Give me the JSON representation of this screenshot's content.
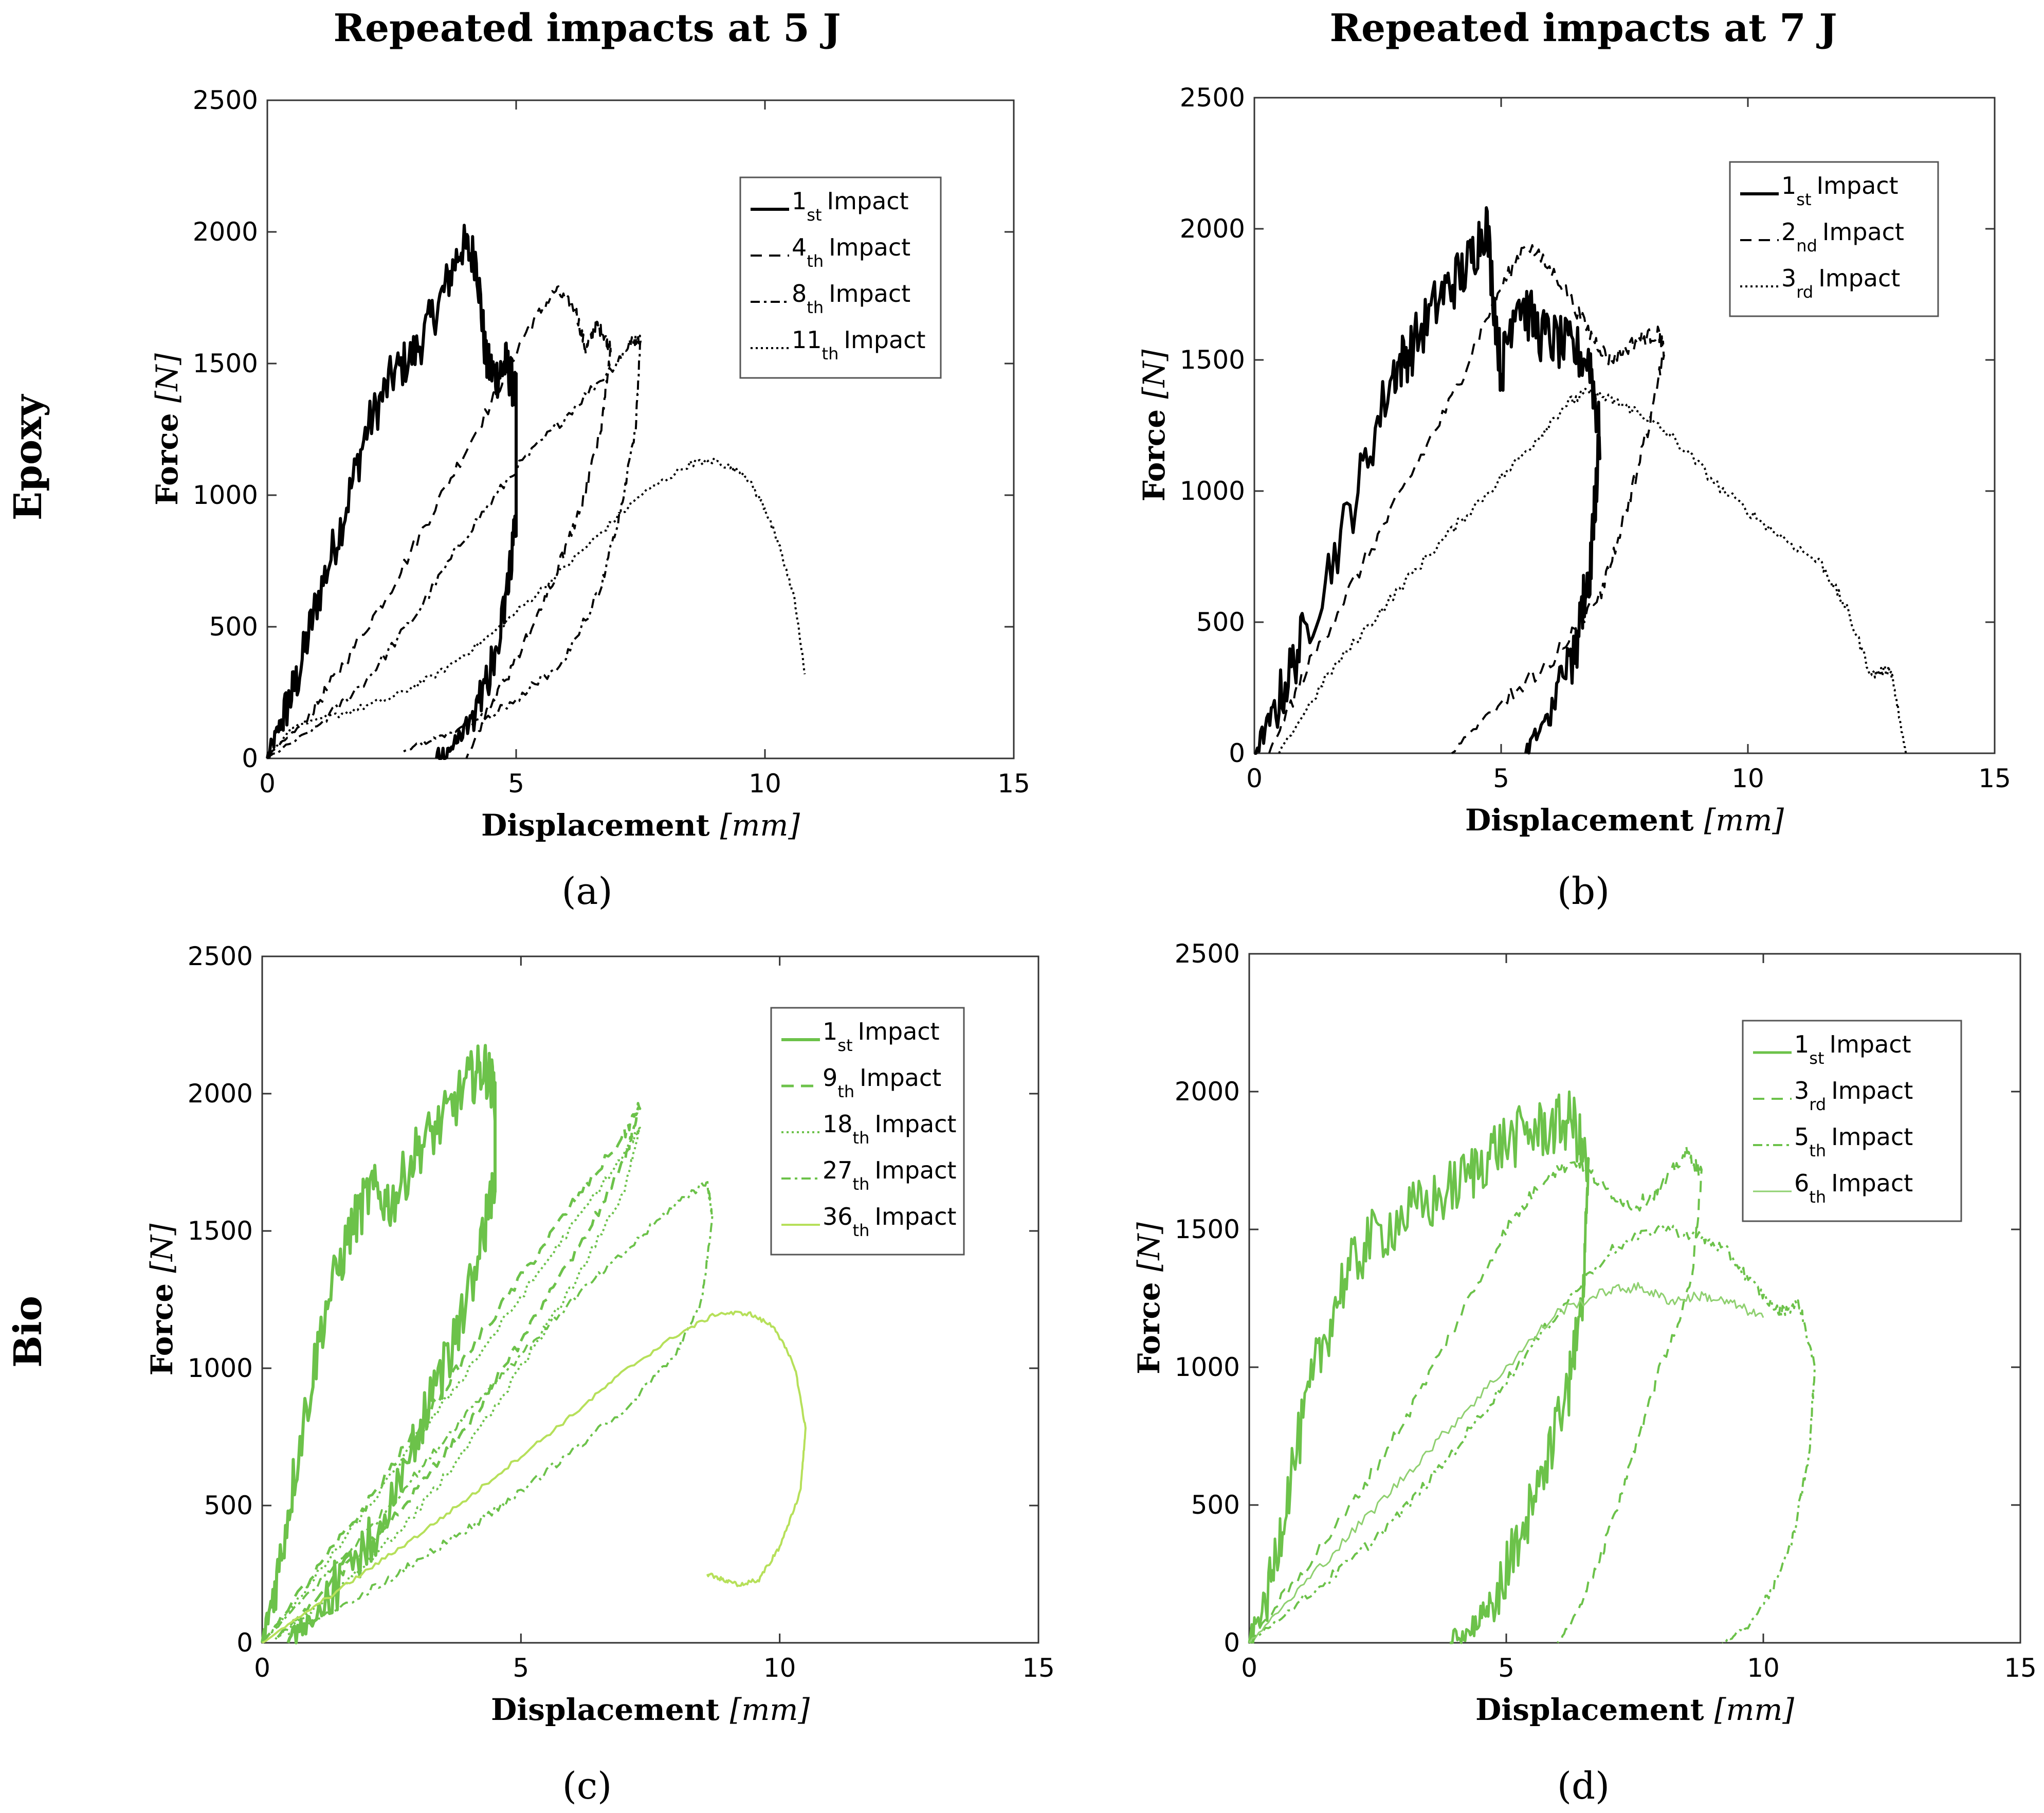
{
  "columns": [
    "Repeated impacts at 5 J",
    "Repeated impacts at 7 J"
  ],
  "rows": [
    "Epoxy",
    "Bio"
  ],
  "colors": {
    "epoxy": "#000000",
    "bio": "#6cc24a",
    "bio_light": "#b6e05a",
    "bio_faded": "#8fd070"
  },
  "chart_data": [
    {
      "type": "line",
      "panel": "(a)",
      "material": "Epoxy",
      "energy": "5 J",
      "xlabel": "Displacement",
      "xunit": "mm",
      "ylabel": "Force",
      "yunit": "N",
      "xlim": [
        0,
        15
      ],
      "ylim": [
        0,
        2500
      ],
      "xticks": [
        0,
        5,
        10,
        15
      ],
      "yticks": [
        0,
        500,
        1000,
        1500,
        2000,
        2500
      ],
      "legend": [
        {
          "num": "1",
          "sub": "st",
          "text": "Impact"
        },
        {
          "num": "4",
          "sub": "th",
          "text": "Impact"
        },
        {
          "num": "8",
          "sub": "th",
          "text": "Impact"
        },
        {
          "num": "11",
          "sub": "th",
          "text": "Impact"
        }
      ],
      "series": [
        {
          "name": "1st Impact",
          "color": "epoxy",
          "dash": "",
          "width": 6,
          "noise": 90,
          "x": [
            0,
            0.3,
            0.6,
            1.0,
            1.5,
            2.0,
            2.5,
            3.0,
            3.5,
            3.9,
            4.2,
            4.4,
            4.6,
            4.8,
            5.0,
            5.0,
            4.8,
            4.5,
            4.1,
            3.7,
            3.4
          ],
          "y": [
            0,
            150,
            300,
            600,
            900,
            1250,
            1450,
            1550,
            1750,
            1950,
            1900,
            1500,
            1450,
            1500,
            1380,
            900,
            600,
            350,
            150,
            30,
            0
          ]
        },
        {
          "name": "4th Impact",
          "color": "epoxy",
          "dash": "22,14",
          "width": 4,
          "noise": 25,
          "x": [
            0,
            0.8,
            1.5,
            2.5,
            3.5,
            4.5,
            5.2,
            5.8,
            6.2,
            6.4,
            6.6,
            6.8,
            6.9,
            6.7,
            6.3,
            5.8,
            5.2,
            4.5,
            4.0
          ],
          "y": [
            0,
            150,
            350,
            650,
            1000,
            1350,
            1620,
            1780,
            1700,
            1550,
            1650,
            1600,
            1550,
            1250,
            950,
            700,
            450,
            200,
            0
          ]
        },
        {
          "name": "8th Impact",
          "color": "epoxy",
          "dash": "18,8,5,8",
          "width": 4,
          "noise": 20,
          "x": [
            0,
            1.0,
            2.0,
            3.0,
            4.0,
            5.0,
            6.0,
            7.0,
            7.3,
            7.5,
            7.4,
            7.1,
            6.7,
            6.0,
            5.0,
            4.0,
            3.3,
            2.7
          ],
          "y": [
            0,
            120,
            300,
            550,
            850,
            1100,
            1300,
            1500,
            1580,
            1600,
            1250,
            950,
            650,
            380,
            220,
            120,
            70,
            30
          ]
        },
        {
          "name": "11th Impact",
          "color": "epoxy",
          "dash": "4,6",
          "width": 4,
          "noise": 12,
          "x": [
            0,
            0.5,
            1.5,
            2.5,
            3.5,
            4.5,
            5.5,
            6.5,
            7.5,
            8.5,
            9.0,
            9.6,
            10.0,
            10.3,
            10.6,
            10.8
          ],
          "y": [
            0,
            120,
            170,
            230,
            330,
            470,
            640,
            820,
            1000,
            1120,
            1130,
            1080,
            950,
            800,
            600,
            320
          ]
        }
      ]
    },
    {
      "type": "line",
      "panel": "(b)",
      "material": "Epoxy",
      "energy": "7 J",
      "xlabel": "Displacement",
      "xunit": "mm",
      "ylabel": "Force",
      "yunit": "N",
      "xlim": [
        0,
        15
      ],
      "ylim": [
        0,
        2500
      ],
      "xticks": [
        0,
        5,
        10,
        15
      ],
      "yticks": [
        0,
        500,
        1000,
        1500,
        2000,
        2500
      ],
      "legend": [
        {
          "num": "1",
          "sub": "st",
          "text": "Impact"
        },
        {
          "num": "2",
          "sub": "nd",
          "text": "Impact"
        },
        {
          "num": "3",
          "sub": "rd",
          "text": "Impact"
        }
      ],
      "series": [
        {
          "name": "1st Impact",
          "color": "epoxy",
          "dash": "",
          "width": 6,
          "noise": 110,
          "x": [
            0,
            0.5,
            1.0,
            2.0,
            2.8,
            3.2,
            3.8,
            4.3,
            4.7,
            5.0,
            5.3,
            5.8,
            6.3,
            6.8,
            7.0,
            6.8,
            6.5,
            6.0,
            5.5
          ],
          "y": [
            0,
            200,
            450,
            950,
            1450,
            1550,
            1750,
            1850,
            2030,
            1450,
            1750,
            1600,
            1550,
            1500,
            1200,
            700,
            400,
            150,
            0
          ]
        },
        {
          "name": "2nd Impact",
          "color": "epoxy",
          "dash": "22,14",
          "width": 4,
          "noise": 30,
          "x": [
            0.3,
            1.0,
            2.0,
            3.0,
            4.0,
            4.8,
            5.5,
            6.2,
            6.8,
            7.2,
            7.8,
            8.2,
            8.3,
            8.0,
            7.5,
            7.0,
            6.0,
            5.0,
            4.0
          ],
          "y": [
            0,
            300,
            650,
            1000,
            1350,
            1700,
            1950,
            1800,
            1600,
            1500,
            1580,
            1600,
            1530,
            1250,
            900,
            600,
            350,
            200,
            0
          ]
        },
        {
          "name": "3rd Impact",
          "color": "epoxy",
          "dash": "4,6",
          "width": 4,
          "noise": 20,
          "x": [
            0.5,
            1.5,
            2.5,
            3.5,
            4.5,
            5.5,
            6.3,
            6.8,
            7.3,
            7.8,
            8.5,
            9.5,
            10.5,
            11.5,
            12.0,
            12.5,
            12.9,
            13.1,
            13.2
          ],
          "y": [
            0,
            300,
            530,
            750,
            950,
            1150,
            1330,
            1380,
            1340,
            1300,
            1200,
            1000,
            850,
            720,
            550,
            300,
            320,
            100,
            0
          ]
        }
      ]
    },
    {
      "type": "line",
      "panel": "(c)",
      "material": "Bio",
      "energy": "5 J",
      "xlabel": "Displacement",
      "xunit": "mm",
      "ylabel": "Force",
      "yunit": "N",
      "xlim": [
        0,
        15
      ],
      "ylim": [
        0,
        2500
      ],
      "xticks": [
        0,
        5,
        10,
        15
      ],
      "yticks": [
        0,
        500,
        1000,
        1500,
        2000,
        2500
      ],
      "legend": [
        {
          "num": "1",
          "sub": "st",
          "text": "Impact"
        },
        {
          "num": "9",
          "sub": "th",
          "text": "Impact"
        },
        {
          "num": "18",
          "sub": "th",
          "text": "Impact"
        },
        {
          "num": "27",
          "sub": "th",
          "text": "Impact"
        },
        {
          "num": "36",
          "sub": "th",
          "text": "Impact"
        }
      ],
      "series": [
        {
          "name": "1st Impact",
          "color": "bio",
          "dash": "",
          "width": 6,
          "noise": 100,
          "x": [
            0,
            0.3,
            0.7,
            1.2,
            1.7,
            2.1,
            2.5,
            3.0,
            3.5,
            4.0,
            4.3,
            4.5,
            4.5,
            4.2,
            3.7,
            3.1,
            2.5,
            1.8,
            1.0,
            0.5
          ],
          "y": [
            0,
            250,
            700,
            1200,
            1500,
            1650,
            1600,
            1800,
            1900,
            2050,
            2100,
            2000,
            1700,
            1400,
            1100,
            800,
            500,
            300,
            100,
            0
          ]
        },
        {
          "name": "9th Impact",
          "color": "bio",
          "dash": "24,14",
          "width": 5,
          "noise": 20,
          "x": [
            0,
            1.0,
            2.0,
            3.0,
            4.0,
            5.0,
            6.0,
            7.0,
            7.3,
            7.0,
            6.0,
            5.0,
            4.0,
            3.0,
            2.0,
            1.0,
            0.3
          ],
          "y": [
            0,
            250,
            500,
            780,
            1060,
            1330,
            1600,
            1850,
            1960,
            1750,
            1400,
            1100,
            800,
            560,
            350,
            150,
            20
          ]
        },
        {
          "name": "18th Impact",
          "color": "bio",
          "dash": "4,6",
          "width": 4,
          "noise": 15,
          "x": [
            0,
            1.0,
            2.0,
            3.0,
            4.0,
            5.0,
            6.0,
            7.0,
            7.3,
            7.0,
            6.0,
            5.0,
            4.0,
            3.0,
            2.0,
            1.0,
            0.2
          ],
          "y": [
            0,
            230,
            480,
            740,
            1000,
            1260,
            1520,
            1780,
            1880,
            1650,
            1300,
            1000,
            720,
            480,
            280,
            120,
            10
          ]
        },
        {
          "name": "27th Impact",
          "color": "bio",
          "dash": "18,8,5,8",
          "width": 4,
          "noise": 15,
          "x": [
            0,
            1.0,
            2.0,
            3.0,
            4.0,
            5.0,
            6.0,
            7.0,
            8.0,
            8.6,
            8.7,
            8.5,
            8.0,
            7.0,
            6.0,
            5.0,
            4.0,
            3.0,
            2.0,
            1.0,
            0.5
          ],
          "y": [
            0,
            200,
            400,
            620,
            850,
            1050,
            1250,
            1420,
            1600,
            1680,
            1550,
            1250,
            1050,
            850,
            700,
            550,
            420,
            300,
            180,
            80,
            30
          ]
        },
        {
          "name": "36th Impact",
          "color": "bio_light",
          "dash": "",
          "width": 4,
          "noise": 8,
          "x": [
            0,
            1.0,
            2.0,
            3.0,
            4.0,
            5.0,
            6.0,
            7.0,
            8.0,
            8.8,
            9.4,
            9.9,
            10.3,
            10.5,
            10.4,
            10.0,
            9.6,
            9.2,
            8.9,
            8.6
          ],
          "y": [
            0,
            130,
            260,
            390,
            530,
            680,
            830,
            990,
            1120,
            1200,
            1200,
            1150,
            1000,
            780,
            550,
            350,
            230,
            210,
            230,
            250
          ]
        }
      ]
    },
    {
      "type": "line",
      "panel": "(d)",
      "material": "Bio",
      "energy": "7 J",
      "xlabel": "Displacement",
      "xunit": "mm",
      "ylabel": "Force",
      "yunit": "N",
      "xlim": [
        0,
        15
      ],
      "ylim": [
        0,
        2500
      ],
      "xticks": [
        0,
        5,
        10,
        15
      ],
      "yticks": [
        0,
        500,
        1000,
        1500,
        2000,
        2500
      ],
      "legend": [
        {
          "num": "1",
          "sub": "st",
          "text": "Impact"
        },
        {
          "num": "3",
          "sub": "rd",
          "text": "Impact"
        },
        {
          "num": "5",
          "sub": "th",
          "text": "Impact"
        },
        {
          "num": "6",
          "sub": "th",
          "text": "Impact"
        }
      ],
      "series": [
        {
          "name": "1st Impact",
          "color": "bio",
          "dash": "",
          "width": 5,
          "noise": 110,
          "x": [
            0,
            0.4,
            0.8,
            1.3,
            1.8,
            2.3,
            3.0,
            3.6,
            4.3,
            4.8,
            5.4,
            5.9,
            6.3,
            6.6,
            6.5,
            6.2,
            5.7,
            5.2,
            4.7,
            4.3,
            3.9
          ],
          "y": [
            0,
            200,
            600,
            1000,
            1300,
            1450,
            1550,
            1600,
            1700,
            1800,
            1850,
            1870,
            1900,
            1700,
            1300,
            900,
            600,
            350,
            150,
            40,
            0
          ]
        },
        {
          "name": "3rd Impact",
          "color": "bio",
          "dash": "22,14",
          "width": 4,
          "noise": 25,
          "x": [
            0,
            1.0,
            2.0,
            3.0,
            4.0,
            5.0,
            5.8,
            6.4,
            6.9,
            7.5,
            8.0,
            8.5,
            8.8,
            8.6,
            8.0,
            7.5,
            7.0,
            6.5,
            6.0
          ],
          "y": [
            0,
            250,
            500,
            800,
            1150,
            1500,
            1700,
            1750,
            1650,
            1580,
            1650,
            1780,
            1700,
            1300,
            1000,
            700,
            400,
            150,
            0
          ]
        },
        {
          "name": "5th Impact",
          "color": "bio",
          "dash": "18,8,5,8",
          "width": 4,
          "noise": 20,
          "x": [
            0,
            1.0,
            2.0,
            3.0,
            4.0,
            5.0,
            6.0,
            7.0,
            8.0,
            8.8,
            9.3,
            9.8,
            10.3,
            10.7,
            11.0,
            10.9,
            10.6,
            10.2,
            9.7,
            9.2
          ],
          "y": [
            0,
            150,
            300,
            480,
            700,
            950,
            1200,
            1420,
            1510,
            1470,
            1420,
            1300,
            1200,
            1230,
            1000,
            700,
            400,
            200,
            60,
            0
          ]
        },
        {
          "name": "6th Impact",
          "color": "bio_faded",
          "dash": "",
          "width": 3,
          "noise": 18,
          "x": [
            0,
            1.0,
            2.0,
            3.0,
            4.0,
            5.0,
            6.0,
            7.0,
            7.6,
            8.2,
            8.8,
            9.4,
            10.0
          ],
          "y": [
            0,
            200,
            400,
            600,
            800,
            1000,
            1200,
            1280,
            1290,
            1240,
            1260,
            1230,
            1180
          ]
        }
      ]
    }
  ]
}
